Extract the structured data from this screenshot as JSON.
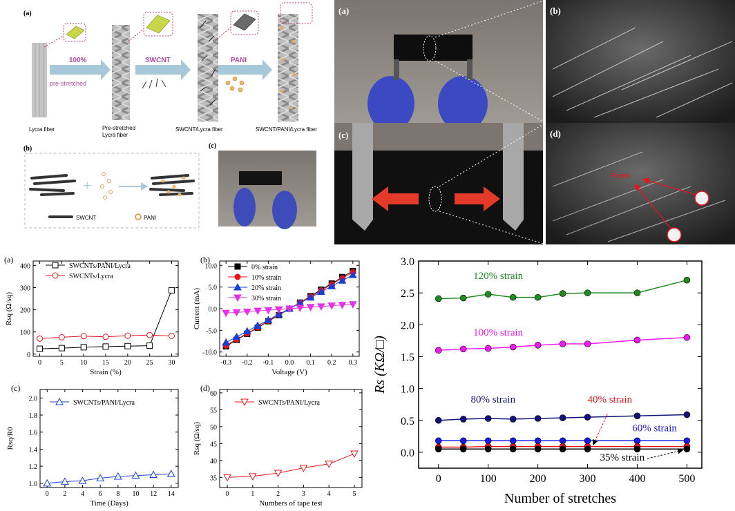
{
  "schematic": {
    "panel_a": "(a)",
    "arrow1_top": "100%",
    "arrow1_bottom": "pre-stretched",
    "arrow2": "SWCNT",
    "arrow3": "PANI",
    "fiber1": "Lycra fiber",
    "fiber2_line1": "Pre-stretched",
    "fiber2_line2": "Lycra fiber",
    "fiber3": "SWCNT/Lycra fiber",
    "fiber4": "SWCNT/PANI/Lycra fiber",
    "panel_b": "(b)",
    "legend_swcnt": "SWCNT",
    "legend_pani": "PANI",
    "panel_c": "(c)"
  },
  "photos": {
    "a": "(a)",
    "b": "(b)",
    "c": "(c)",
    "d": "(d)",
    "pores": "Pores"
  },
  "chart_data": [
    {
      "id": "small-a",
      "type": "line",
      "panel": "(a)",
      "xlabel": "Strain (%)",
      "ylabel": "Rsq (Ω/sq)",
      "x": [
        0,
        5,
        10,
        15,
        20,
        25,
        30
      ],
      "xlim": [
        -1.5,
        31.5
      ],
      "ylim": [
        -10,
        420
      ],
      "xticks": [
        0,
        5,
        10,
        15,
        20,
        25,
        30
      ],
      "yticks": [
        0,
        100,
        200,
        300,
        400
      ],
      "series": [
        {
          "name": "SWCNTs/PANI/Lycra",
          "marker": "square",
          "color": "#000000",
          "values": [
            24,
            27,
            31,
            34,
            36,
            38,
            288
          ]
        },
        {
          "name": "SWCNTs/Lycra",
          "marker": "circle",
          "color": "#e8141c",
          "values": [
            70,
            76,
            81,
            78,
            83,
            86,
            82
          ]
        }
      ]
    },
    {
      "id": "small-b",
      "type": "line",
      "panel": "(b)",
      "xlabel": "Voltage (V)",
      "ylabel": "Current (mA)",
      "x": [
        -0.3,
        -0.25,
        -0.2,
        -0.15,
        -0.1,
        -0.05,
        0,
        0.05,
        0.1,
        0.15,
        0.2,
        0.25,
        0.3
      ],
      "xlim": [
        -0.33,
        0.33
      ],
      "ylim": [
        -11,
        11
      ],
      "xticks": [
        -0.3,
        -0.2,
        -0.1,
        0.0,
        0.1,
        0.2,
        0.3
      ],
      "yticks": [
        -10,
        -5,
        0,
        5,
        10
      ],
      "series": [
        {
          "name": "0%   strain",
          "marker": "square",
          "color": "#000000",
          "values": [
            -8.7,
            -7.2,
            -5.8,
            -4.4,
            -2.9,
            -1.5,
            0,
            1.4,
            2.9,
            4.4,
            5.8,
            7.3,
            8.7
          ]
        },
        {
          "name": "10% strain",
          "marker": "circle",
          "color": "#e8141c",
          "values": [
            -8.5,
            -7.1,
            -5.7,
            -4.3,
            -2.8,
            -1.4,
            0,
            1.4,
            2.8,
            4.2,
            5.6,
            7.0,
            8.4
          ]
        },
        {
          "name": "20% strain",
          "marker": "triangle",
          "color": "#1a3fd6",
          "values": [
            -7.8,
            -6.5,
            -5.2,
            -3.9,
            -2.6,
            -1.3,
            0,
            1.3,
            2.6,
            3.9,
            5.2,
            6.5,
            7.8
          ]
        },
        {
          "name": "30% strain",
          "marker": "triangle-down",
          "color": "#e632e6",
          "values": [
            -1.0,
            -0.85,
            -0.7,
            -0.5,
            -0.35,
            -0.17,
            0,
            0.17,
            0.35,
            0.5,
            0.7,
            0.85,
            1.0
          ]
        }
      ]
    },
    {
      "id": "small-c",
      "type": "line",
      "panel": "(c)",
      "xlabel": "Time (Days)",
      "ylabel": "Rsq/R0",
      "x": [
        0,
        2,
        4,
        6,
        8,
        10,
        12,
        14
      ],
      "xlim": [
        -0.8,
        14.8
      ],
      "ylim": [
        0.95,
        2.1
      ],
      "xticks": [
        0,
        2,
        4,
        6,
        8,
        10,
        12,
        14
      ],
      "yticks": [
        1.0,
        1.2,
        1.4,
        1.6,
        1.8,
        2.0
      ],
      "series": [
        {
          "name": "SWCNTs/PANI/Lycra",
          "marker": "triangle",
          "color": "#1a3fd6",
          "values": [
            1.0,
            1.02,
            1.03,
            1.06,
            1.08,
            1.09,
            1.1,
            1.11
          ]
        }
      ]
    },
    {
      "id": "small-d",
      "type": "line",
      "panel": "(d)",
      "xlabel": "Numbers of tape test",
      "ylabel": "Rsq (Ω/sq)",
      "x": [
        0,
        1,
        2,
        3,
        4,
        5
      ],
      "xlim": [
        -0.3,
        5.3
      ],
      "ylim": [
        32,
        61
      ],
      "xticks": [
        0,
        1,
        2,
        3,
        4,
        5
      ],
      "yticks": [
        35,
        40,
        45,
        50,
        55,
        60
      ],
      "series": [
        {
          "name": "SWCNTs/PANI/Lycra",
          "marker": "triangle-down",
          "color": "#e8141c",
          "values": [
            35,
            35.3,
            36.3,
            37.8,
            39,
            42
          ]
        }
      ]
    },
    {
      "id": "big",
      "type": "line",
      "xlabel": "Number of stretches",
      "ylabel": "Rs (KΩ/□)",
      "x": [
        0,
        50,
        100,
        150,
        200,
        250,
        300,
        400,
        500
      ],
      "xlim": [
        -40,
        530
      ],
      "ylim": [
        -0.25,
        3.0
      ],
      "xticks": [
        0,
        100,
        200,
        300,
        400,
        500
      ],
      "yticks": [
        0.0,
        0.5,
        1.0,
        1.5,
        2.0,
        2.5,
        3.0
      ],
      "series": [
        {
          "name": "120% strain",
          "color": "#1e8c1e",
          "values": [
            2.41,
            2.42,
            2.48,
            2.43,
            2.43,
            2.49,
            2.5,
            2.5,
            2.7
          ]
        },
        {
          "name": "100% strain",
          "color": "#f019f0",
          "values": [
            1.6,
            1.62,
            1.63,
            1.65,
            1.68,
            1.7,
            1.7,
            1.76,
            1.8
          ]
        },
        {
          "name": "80% strain",
          "color": "#12127a",
          "values": [
            0.5,
            0.52,
            0.53,
            0.52,
            0.53,
            0.54,
            0.55,
            0.57,
            0.59
          ]
        },
        {
          "name": "60% strain",
          "color": "#1a1ae6",
          "values": [
            0.18,
            0.18,
            0.18,
            0.18,
            0.18,
            0.18,
            0.18,
            0.18,
            0.18
          ]
        },
        {
          "name": "40% strain",
          "color": "#e8141c",
          "values": [
            0.08,
            0.08,
            0.09,
            0.09,
            0.09,
            0.09,
            0.09,
            0.09,
            0.09
          ]
        },
        {
          "name": "35% strain",
          "color": "#000000",
          "values": [
            0.05,
            0.05,
            0.05,
            0.05,
            0.05,
            0.05,
            0.05,
            0.05,
            0.05
          ]
        }
      ]
    }
  ]
}
